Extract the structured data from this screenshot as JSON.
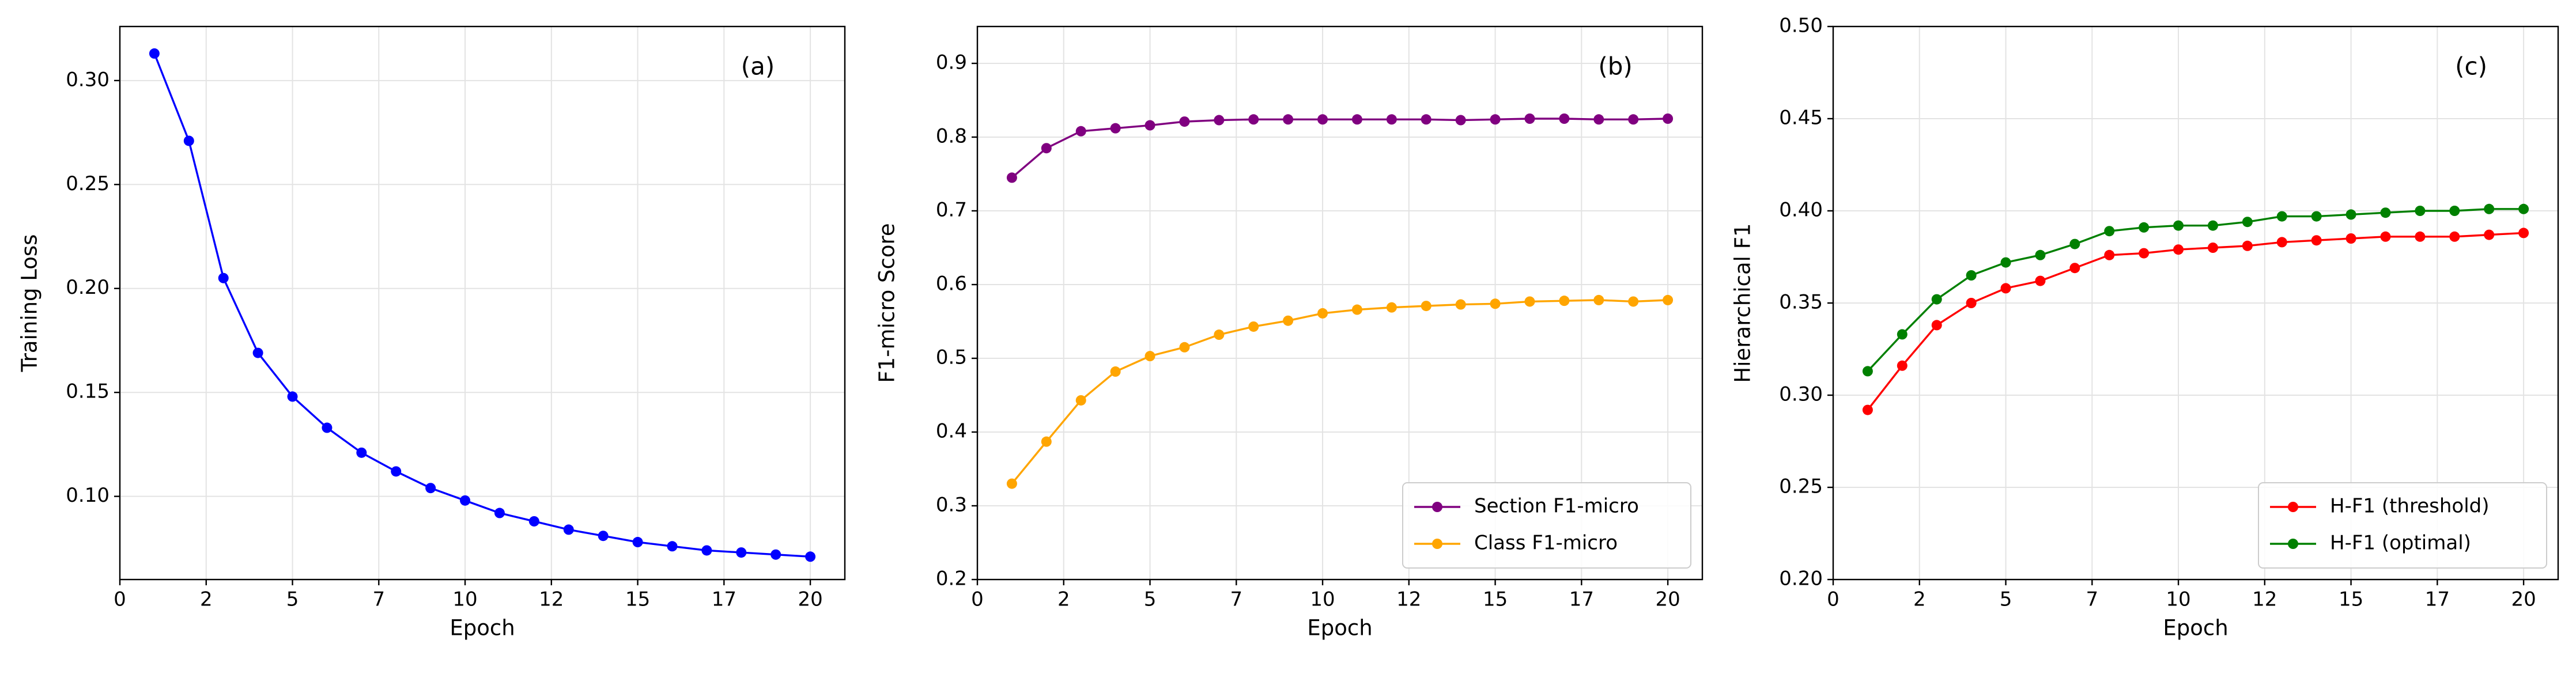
{
  "chart_data": [
    {
      "type": "line",
      "xlabel": "Epoch",
      "ylabel": "Training Loss",
      "annotation": "(a)",
      "x": [
        1,
        2,
        3,
        4,
        5,
        6,
        7,
        8,
        9,
        10,
        11,
        12,
        13,
        14,
        15,
        16,
        17,
        18,
        19,
        20
      ],
      "series": [
        {
          "color": "#0000ff",
          "values": [
            0.313,
            0.271,
            0.205,
            0.169,
            0.148,
            0.133,
            0.121,
            0.112,
            0.104,
            0.098,
            0.092,
            0.088,
            0.084,
            0.081,
            0.078,
            0.076,
            0.074,
            0.073,
            0.072,
            0.071
          ]
        }
      ],
      "xlim": [
        0,
        21
      ],
      "ylim": [
        0.06,
        0.326
      ],
      "xticks": [
        0,
        {
          "value": 2.5,
          "label": "2"
        },
        5,
        {
          "value": 7.5,
          "label": "7"
        },
        10,
        {
          "value": 12.5,
          "label": "12"
        },
        15,
        {
          "value": 17.5,
          "label": "17"
        },
        20
      ],
      "yticks": [
        {
          "value": 0.1,
          "label": "0.10"
        },
        {
          "value": 0.15,
          "label": "0.15"
        },
        {
          "value": 0.2,
          "label": "0.20"
        },
        {
          "value": 0.25,
          "label": "0.25"
        },
        {
          "value": 0.3,
          "label": "0.30"
        }
      ],
      "grid": true
    },
    {
      "type": "line",
      "xlabel": "Epoch",
      "ylabel": "F1-micro Score",
      "annotation": "(b)",
      "x": [
        1,
        2,
        3,
        4,
        5,
        6,
        7,
        8,
        9,
        10,
        11,
        12,
        13,
        14,
        15,
        16,
        17,
        18,
        19,
        20
      ],
      "series": [
        {
          "name": "Section F1-micro",
          "color": "#800080",
          "values": [
            0.745,
            0.785,
            0.808,
            0.812,
            0.816,
            0.821,
            0.823,
            0.824,
            0.824,
            0.824,
            0.824,
            0.824,
            0.824,
            0.823,
            0.824,
            0.825,
            0.825,
            0.824,
            0.824,
            0.825
          ]
        },
        {
          "name": "Class F1-micro",
          "color": "#ffa500",
          "values": [
            0.33,
            0.387,
            0.443,
            0.482,
            0.503,
            0.515,
            0.532,
            0.543,
            0.551,
            0.561,
            0.566,
            0.569,
            0.571,
            0.573,
            0.574,
            0.577,
            0.578,
            0.579,
            0.577,
            0.579
          ]
        }
      ],
      "xlim": [
        0,
        21
      ],
      "ylim": [
        0.2,
        0.95
      ],
      "xticks": [
        0,
        {
          "value": 2.5,
          "label": "2"
        },
        5,
        {
          "value": 7.5,
          "label": "7"
        },
        10,
        {
          "value": 12.5,
          "label": "12"
        },
        15,
        {
          "value": 17.5,
          "label": "17"
        },
        20
      ],
      "yticks": [
        0.2,
        0.3,
        0.4,
        0.5,
        0.6,
        0.7,
        0.8,
        0.9
      ],
      "grid": true,
      "legend": "lower right"
    },
    {
      "type": "line",
      "xlabel": "Epoch",
      "ylabel": "Hierarchical F1",
      "annotation": "(c)",
      "x": [
        1,
        2,
        3,
        4,
        5,
        6,
        7,
        8,
        9,
        10,
        11,
        12,
        13,
        14,
        15,
        16,
        17,
        18,
        19,
        20
      ],
      "series": [
        {
          "name": "H-F1 (threshold)",
          "color": "#ff0000",
          "values": [
            0.292,
            0.316,
            0.338,
            0.35,
            0.358,
            0.362,
            0.369,
            0.376,
            0.377,
            0.379,
            0.38,
            0.381,
            0.383,
            0.384,
            0.385,
            0.386,
            0.386,
            0.386,
            0.387,
            0.388
          ]
        },
        {
          "name": "H-F1 (optimal)",
          "color": "#008000",
          "values": [
            0.313,
            0.333,
            0.352,
            0.365,
            0.372,
            0.376,
            0.382,
            0.389,
            0.391,
            0.392,
            0.392,
            0.394,
            0.397,
            0.397,
            0.398,
            0.399,
            0.4,
            0.4,
            0.401,
            0.401
          ]
        }
      ],
      "xlim": [
        0,
        21
      ],
      "ylim": [
        0.2,
        0.5
      ],
      "xticks": [
        0,
        {
          "value": 2.5,
          "label": "2"
        },
        5,
        {
          "value": 7.5,
          "label": "7"
        },
        10,
        {
          "value": 12.5,
          "label": "12"
        },
        15,
        {
          "value": 17.5,
          "label": "17"
        },
        20
      ],
      "yticks": [
        {
          "value": 0.2,
          "label": "0.20"
        },
        {
          "value": 0.25,
          "label": "0.25"
        },
        {
          "value": 0.3,
          "label": "0.30"
        },
        {
          "value": 0.35,
          "label": "0.35"
        },
        {
          "value": 0.4,
          "label": "0.40"
        },
        {
          "value": 0.45,
          "label": "0.45"
        },
        {
          "value": 0.5,
          "label": "0.50"
        }
      ],
      "grid": true,
      "legend": "lower right"
    }
  ]
}
